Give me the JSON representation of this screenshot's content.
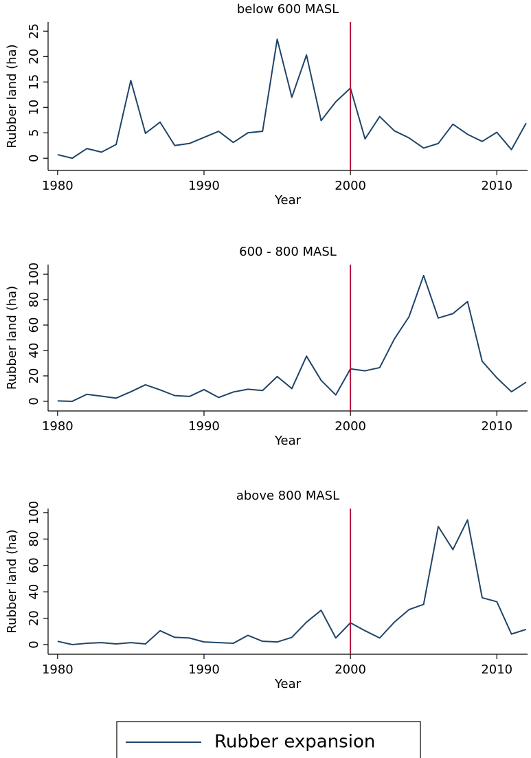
{
  "chart_data": [
    {
      "type": "line",
      "title": "below 600 MASL",
      "xlabel": "Year",
      "ylabel": "Rubber land (ha)",
      "x": [
        1980,
        1981,
        1982,
        1983,
        1984,
        1985,
        1986,
        1987,
        1988,
        1989,
        1990,
        1991,
        1992,
        1993,
        1994,
        1995,
        1996,
        1997,
        1998,
        1999,
        2000,
        2001,
        2002,
        2003,
        2004,
        2005,
        2006,
        2007,
        2008,
        2009,
        2010,
        2011,
        2012
      ],
      "series": [
        {
          "name": "Rubber expansion",
          "color": "#1f4468",
          "values": [
            0.7,
            0,
            1.9,
            1.2,
            2.7,
            15.3,
            4.9,
            7.1,
            2.5,
            2.9,
            4.1,
            5.3,
            3.1,
            5.0,
            5.3,
            23.4,
            12.0,
            20.3,
            7.4,
            11.1,
            13.8,
            3.8,
            8.2,
            5.4,
            4.0,
            2.0,
            2.9,
            6.7,
            4.7,
            3.3,
            5.1,
            1.7,
            6.9
          ]
        }
      ],
      "xlim": [
        1979.35,
        2012.1
      ],
      "xticks": [
        1980,
        1990,
        2000,
        2010
      ],
      "ylim": [
        -2.4,
        26.8
      ],
      "yticks": [
        0,
        5,
        10,
        15,
        20,
        25
      ],
      "vline": 2000,
      "vline_color": "#b5103a"
    },
    {
      "type": "line",
      "title": "600 - 800 MASL",
      "xlabel": "Year",
      "ylabel": "Rubber land (ha)",
      "x": [
        1980,
        1981,
        1982,
        1983,
        1984,
        1985,
        1986,
        1987,
        1988,
        1989,
        1990,
        1991,
        1992,
        1993,
        1994,
        1995,
        1996,
        1997,
        1998,
        1999,
        2000,
        2001,
        2002,
        2003,
        2004,
        2005,
        2006,
        2007,
        2008,
        2009,
        2010,
        2011,
        2012
      ],
      "series": [
        {
          "color": "#1f4468",
          "values": [
            0.3,
            0,
            5.5,
            4,
            2.5,
            7.5,
            13,
            9,
            4.5,
            3.8,
            9.2,
            3,
            7.3,
            9.5,
            8.5,
            19.5,
            10,
            35.5,
            16.5,
            5,
            25.5,
            24,
            26.5,
            49,
            66.5,
            99,
            65.5,
            69,
            78.5,
            31.5,
            18.5,
            7.5,
            15
          ]
        }
      ],
      "xlim": [
        1979.35,
        2012.1
      ],
      "xticks": [
        1980,
        1990,
        2000,
        2010
      ],
      "ylim": [
        -7.6,
        107.6
      ],
      "yticks": [
        0,
        20,
        40,
        60,
        80,
        100
      ],
      "vline": 2000,
      "vline_color": "#b5103a"
    },
    {
      "type": "line",
      "title": "above 800 MASL",
      "xlabel": "Year",
      "ylabel": "Rubber land (ha)",
      "x": [
        1980,
        1981,
        1982,
        1983,
        1984,
        1985,
        1986,
        1987,
        1988,
        1989,
        1990,
        1991,
        1992,
        1993,
        1994,
        1995,
        1996,
        1997,
        1998,
        1999,
        2000,
        2001,
        2002,
        2003,
        2004,
        2005,
        2006,
        2007,
        2008,
        2009,
        2010,
        2011,
        2012
      ],
      "series": [
        {
          "color": "#1f4468",
          "values": [
            2.5,
            0,
            1,
            1.5,
            0.5,
            1.5,
            0.5,
            10.5,
            5.5,
            5,
            2,
            1.5,
            1,
            7,
            2.5,
            2,
            5.5,
            17,
            26,
            5,
            16.5,
            10.5,
            5,
            17,
            26.5,
            30.5,
            89.5,
            72,
            94.5,
            35.5,
            32.5,
            8,
            11.5
          ]
        }
      ],
      "xlim": [
        1979.35,
        2012.1
      ],
      "xticks": [
        1980,
        1990,
        2000,
        2010
      ],
      "ylim": [
        -7.3,
        103.1
      ],
      "yticks": [
        0,
        20,
        40,
        60,
        80,
        100
      ],
      "vline": 2000,
      "vline_color": "#b5103a"
    }
  ]
}
